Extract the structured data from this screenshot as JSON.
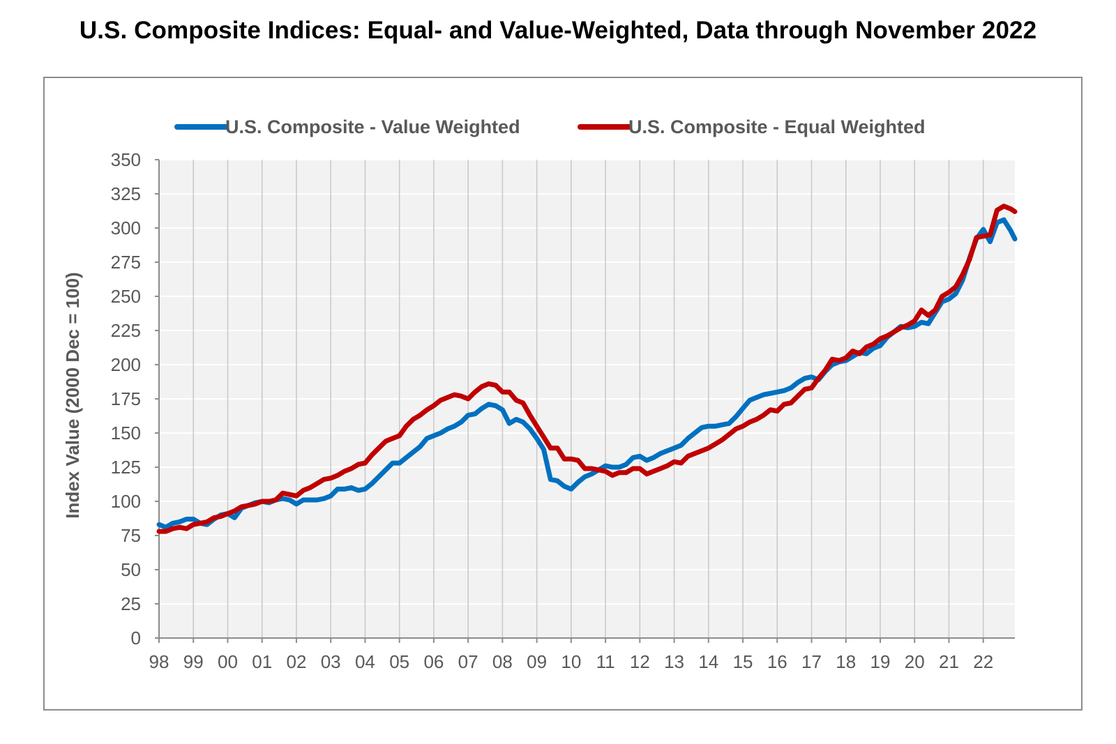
{
  "chart_data": {
    "type": "line",
    "title": "U.S. Composite Indices: Equal- and Value-Weighted, Data through November 2022",
    "xlabel": "",
    "ylabel": "Index Value (2000 Dec = 100)",
    "ylim": [
      0,
      350
    ],
    "yticks": [
      0,
      25,
      50,
      75,
      100,
      125,
      150,
      175,
      200,
      225,
      250,
      275,
      300,
      325,
      350
    ],
    "xlim": [
      1998.0,
      2022.92
    ],
    "xticks": [
      {
        "v": 1998,
        "label": "98"
      },
      {
        "v": 1999,
        "label": "99"
      },
      {
        "v": 2000,
        "label": "00"
      },
      {
        "v": 2001,
        "label": "01"
      },
      {
        "v": 2002,
        "label": "02"
      },
      {
        "v": 2003,
        "label": "03"
      },
      {
        "v": 2004,
        "label": "04"
      },
      {
        "v": 2005,
        "label": "05"
      },
      {
        "v": 2006,
        "label": "06"
      },
      {
        "v": 2007,
        "label": "07"
      },
      {
        "v": 2008,
        "label": "08"
      },
      {
        "v": 2009,
        "label": "09"
      },
      {
        "v": 2010,
        "label": "10"
      },
      {
        "v": 2011,
        "label": "11"
      },
      {
        "v": 2012,
        "label": "12"
      },
      {
        "v": 2013,
        "label": "13"
      },
      {
        "v": 2014,
        "label": "14"
      },
      {
        "v": 2015,
        "label": "15"
      },
      {
        "v": 2016,
        "label": "16"
      },
      {
        "v": 2017,
        "label": "17"
      },
      {
        "v": 2018,
        "label": "18"
      },
      {
        "v": 2019,
        "label": "19"
      },
      {
        "v": 2020,
        "label": "20"
      },
      {
        "v": 2021,
        "label": "21"
      },
      {
        "v": 2022,
        "label": "22"
      }
    ],
    "grid": true,
    "legend_position": "top",
    "series": [
      {
        "name": "U.S. Composite - Value Weighted",
        "color": "#0070C0",
        "points": [
          [
            1998.0,
            83
          ],
          [
            1998.2,
            81
          ],
          [
            1998.4,
            84
          ],
          [
            1998.6,
            85
          ],
          [
            1998.8,
            87
          ],
          [
            1999.0,
            87
          ],
          [
            1999.2,
            84
          ],
          [
            1999.4,
            83
          ],
          [
            1999.6,
            87
          ],
          [
            1999.8,
            90
          ],
          [
            2000.0,
            91
          ],
          [
            2000.2,
            88
          ],
          [
            2000.4,
            95
          ],
          [
            2000.6,
            97
          ],
          [
            2000.8,
            99
          ],
          [
            2001.0,
            100
          ],
          [
            2001.2,
            99
          ],
          [
            2001.4,
            101
          ],
          [
            2001.6,
            102
          ],
          [
            2001.8,
            101
          ],
          [
            2002.0,
            98
          ],
          [
            2002.2,
            101
          ],
          [
            2002.4,
            101
          ],
          [
            2002.6,
            101
          ],
          [
            2002.8,
            102
          ],
          [
            2003.0,
            104
          ],
          [
            2003.2,
            109
          ],
          [
            2003.4,
            109
          ],
          [
            2003.6,
            110
          ],
          [
            2003.8,
            108
          ],
          [
            2004.0,
            109
          ],
          [
            2004.2,
            113
          ],
          [
            2004.4,
            118
          ],
          [
            2004.6,
            123
          ],
          [
            2004.8,
            128
          ],
          [
            2005.0,
            128
          ],
          [
            2005.2,
            132
          ],
          [
            2005.4,
            136
          ],
          [
            2005.6,
            140
          ],
          [
            2005.8,
            146
          ],
          [
            2006.0,
            148
          ],
          [
            2006.2,
            150
          ],
          [
            2006.4,
            153
          ],
          [
            2006.6,
            155
          ],
          [
            2006.8,
            158
          ],
          [
            2007.0,
            163
          ],
          [
            2007.2,
            164
          ],
          [
            2007.4,
            168
          ],
          [
            2007.6,
            171
          ],
          [
            2007.8,
            170
          ],
          [
            2008.0,
            167
          ],
          [
            2008.2,
            157
          ],
          [
            2008.4,
            160
          ],
          [
            2008.6,
            158
          ],
          [
            2008.8,
            153
          ],
          [
            2009.0,
            146
          ],
          [
            2009.2,
            138
          ],
          [
            2009.4,
            116
          ],
          [
            2009.6,
            115
          ],
          [
            2009.8,
            111
          ],
          [
            2010.0,
            109
          ],
          [
            2010.2,
            114
          ],
          [
            2010.4,
            118
          ],
          [
            2010.6,
            120
          ],
          [
            2010.8,
            123
          ],
          [
            2011.0,
            126
          ],
          [
            2011.2,
            125
          ],
          [
            2011.4,
            125
          ],
          [
            2011.6,
            127
          ],
          [
            2011.8,
            132
          ],
          [
            2012.0,
            133
          ],
          [
            2012.2,
            130
          ],
          [
            2012.4,
            132
          ],
          [
            2012.6,
            135
          ],
          [
            2012.8,
            137
          ],
          [
            2013.0,
            139
          ],
          [
            2013.2,
            141
          ],
          [
            2013.4,
            146
          ],
          [
            2013.6,
            150
          ],
          [
            2013.8,
            154
          ],
          [
            2014.0,
            155
          ],
          [
            2014.2,
            155
          ],
          [
            2014.4,
            156
          ],
          [
            2014.6,
            157
          ],
          [
            2014.8,
            162
          ],
          [
            2015.0,
            168
          ],
          [
            2015.2,
            174
          ],
          [
            2015.4,
            176
          ],
          [
            2015.6,
            178
          ],
          [
            2015.8,
            179
          ],
          [
            2016.0,
            180
          ],
          [
            2016.2,
            181
          ],
          [
            2016.4,
            183
          ],
          [
            2016.6,
            187
          ],
          [
            2016.8,
            190
          ],
          [
            2017.0,
            191
          ],
          [
            2017.2,
            189
          ],
          [
            2017.4,
            195
          ],
          [
            2017.6,
            200
          ],
          [
            2017.8,
            202
          ],
          [
            2018.0,
            203
          ],
          [
            2018.2,
            206
          ],
          [
            2018.4,
            209
          ],
          [
            2018.6,
            208
          ],
          [
            2018.8,
            212
          ],
          [
            2019.0,
            214
          ],
          [
            2019.2,
            220
          ],
          [
            2019.4,
            224
          ],
          [
            2019.6,
            228
          ],
          [
            2019.8,
            227
          ],
          [
            2020.0,
            228
          ],
          [
            2020.2,
            231
          ],
          [
            2020.4,
            230
          ],
          [
            2020.6,
            238
          ],
          [
            2020.8,
            246
          ],
          [
            2021.0,
            248
          ],
          [
            2021.2,
            252
          ],
          [
            2021.4,
            262
          ],
          [
            2021.6,
            278
          ],
          [
            2021.8,
            292
          ],
          [
            2022.0,
            299
          ],
          [
            2022.2,
            290
          ],
          [
            2022.4,
            304
          ],
          [
            2022.6,
            306
          ],
          [
            2022.8,
            298
          ],
          [
            2022.92,
            292
          ]
        ]
      },
      {
        "name": "U.S. Composite - Equal Weighted",
        "color": "#C00000",
        "points": [
          [
            1998.0,
            78
          ],
          [
            1998.2,
            78
          ],
          [
            1998.4,
            80
          ],
          [
            1998.6,
            81
          ],
          [
            1998.8,
            80
          ],
          [
            1999.0,
            83
          ],
          [
            1999.2,
            84
          ],
          [
            1999.4,
            85
          ],
          [
            1999.6,
            88
          ],
          [
            1999.8,
            89
          ],
          [
            2000.0,
            91
          ],
          [
            2000.2,
            93
          ],
          [
            2000.4,
            96
          ],
          [
            2000.6,
            97
          ],
          [
            2000.8,
            98
          ],
          [
            2001.0,
            100
          ],
          [
            2001.2,
            100
          ],
          [
            2001.4,
            101
          ],
          [
            2001.6,
            106
          ],
          [
            2001.8,
            105
          ],
          [
            2002.0,
            104
          ],
          [
            2002.2,
            108
          ],
          [
            2002.4,
            110
          ],
          [
            2002.6,
            113
          ],
          [
            2002.8,
            116
          ],
          [
            2003.0,
            117
          ],
          [
            2003.2,
            119
          ],
          [
            2003.4,
            122
          ],
          [
            2003.6,
            124
          ],
          [
            2003.8,
            127
          ],
          [
            2004.0,
            128
          ],
          [
            2004.2,
            134
          ],
          [
            2004.4,
            139
          ],
          [
            2004.6,
            144
          ],
          [
            2004.8,
            146
          ],
          [
            2005.0,
            148
          ],
          [
            2005.2,
            155
          ],
          [
            2005.4,
            160
          ],
          [
            2005.6,
            163
          ],
          [
            2005.8,
            167
          ],
          [
            2006.0,
            170
          ],
          [
            2006.2,
            174
          ],
          [
            2006.4,
            176
          ],
          [
            2006.6,
            178
          ],
          [
            2006.8,
            177
          ],
          [
            2007.0,
            175
          ],
          [
            2007.2,
            180
          ],
          [
            2007.4,
            184
          ],
          [
            2007.6,
            186
          ],
          [
            2007.8,
            185
          ],
          [
            2008.0,
            180
          ],
          [
            2008.2,
            180
          ],
          [
            2008.4,
            174
          ],
          [
            2008.6,
            172
          ],
          [
            2008.8,
            163
          ],
          [
            2009.0,
            155
          ],
          [
            2009.2,
            147
          ],
          [
            2009.4,
            139
          ],
          [
            2009.6,
            139
          ],
          [
            2009.8,
            131
          ],
          [
            2010.0,
            131
          ],
          [
            2010.2,
            130
          ],
          [
            2010.4,
            124
          ],
          [
            2010.6,
            124
          ],
          [
            2010.8,
            123
          ],
          [
            2011.0,
            122
          ],
          [
            2011.2,
            119
          ],
          [
            2011.4,
            121
          ],
          [
            2011.6,
            121
          ],
          [
            2011.8,
            124
          ],
          [
            2012.0,
            124
          ],
          [
            2012.2,
            120
          ],
          [
            2012.4,
            122
          ],
          [
            2012.6,
            124
          ],
          [
            2012.8,
            126
          ],
          [
            2013.0,
            129
          ],
          [
            2013.2,
            128
          ],
          [
            2013.4,
            133
          ],
          [
            2013.6,
            135
          ],
          [
            2013.8,
            137
          ],
          [
            2014.0,
            139
          ],
          [
            2014.2,
            142
          ],
          [
            2014.4,
            145
          ],
          [
            2014.6,
            149
          ],
          [
            2014.8,
            153
          ],
          [
            2015.0,
            155
          ],
          [
            2015.2,
            158
          ],
          [
            2015.4,
            160
          ],
          [
            2015.6,
            163
          ],
          [
            2015.8,
            167
          ],
          [
            2016.0,
            166
          ],
          [
            2016.2,
            171
          ],
          [
            2016.4,
            172
          ],
          [
            2016.6,
            177
          ],
          [
            2016.8,
            182
          ],
          [
            2017.0,
            183
          ],
          [
            2017.2,
            190
          ],
          [
            2017.4,
            196
          ],
          [
            2017.6,
            204
          ],
          [
            2017.8,
            203
          ],
          [
            2018.0,
            205
          ],
          [
            2018.2,
            210
          ],
          [
            2018.4,
            208
          ],
          [
            2018.6,
            213
          ],
          [
            2018.8,
            215
          ],
          [
            2019.0,
            219
          ],
          [
            2019.2,
            221
          ],
          [
            2019.4,
            224
          ],
          [
            2019.6,
            227
          ],
          [
            2019.8,
            229
          ],
          [
            2020.0,
            232
          ],
          [
            2020.2,
            240
          ],
          [
            2020.4,
            236
          ],
          [
            2020.6,
            240
          ],
          [
            2020.8,
            250
          ],
          [
            2021.0,
            253
          ],
          [
            2021.2,
            257
          ],
          [
            2021.4,
            266
          ],
          [
            2021.6,
            277
          ],
          [
            2021.8,
            293
          ],
          [
            2022.0,
            294
          ],
          [
            2022.2,
            295
          ],
          [
            2022.4,
            313
          ],
          [
            2022.6,
            316
          ],
          [
            2022.8,
            314
          ],
          [
            2022.92,
            312
          ]
        ]
      }
    ]
  }
}
